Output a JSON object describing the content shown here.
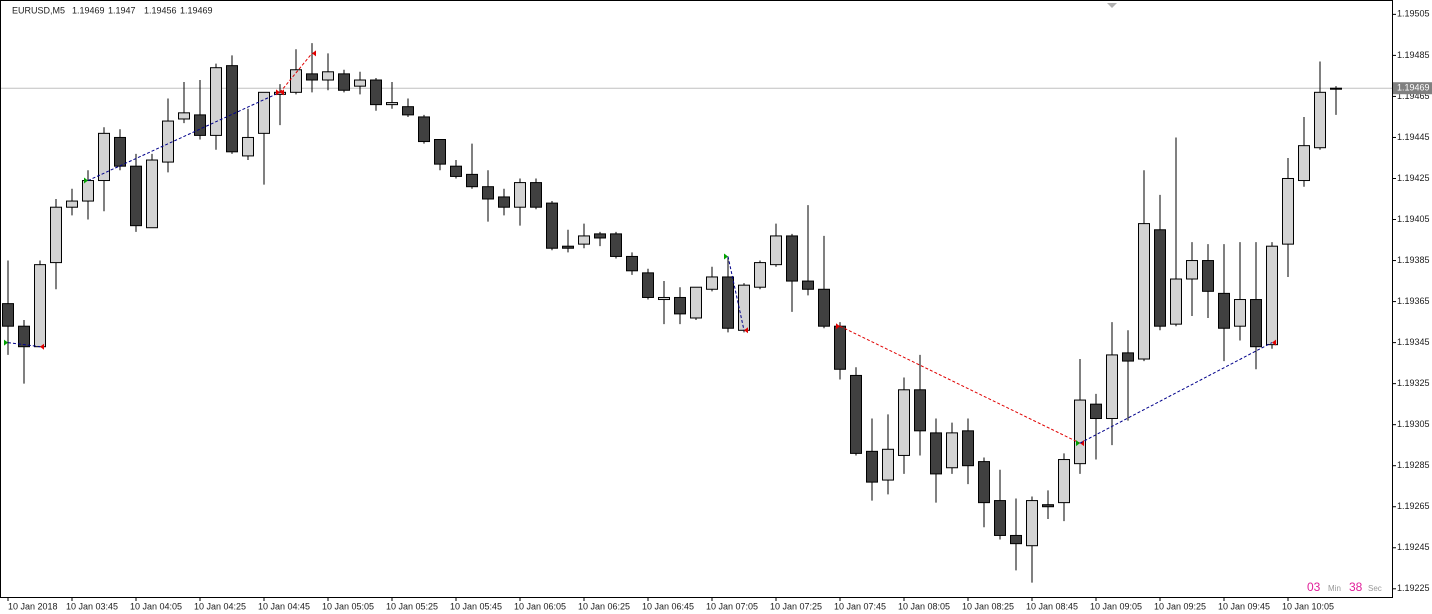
{
  "chart_data": {
    "type": "candlestick",
    "title": "EURUSD,M5",
    "categories": [
      "10 Jan 2018",
      null,
      null,
      null,
      "10 Jan 03:45",
      null,
      null,
      null,
      "10 Jan 04:05",
      null,
      null,
      null,
      "10 Jan 04:25",
      null,
      null,
      null,
      "10 Jan 04:45",
      null,
      null,
      null,
      "10 Jan 05:05",
      null,
      null,
      null,
      "10 Jan 05:25",
      null,
      null,
      null,
      "10 Jan 05:45",
      null,
      null,
      null,
      "10 Jan 06:05",
      null,
      null,
      null,
      "10 Jan 06:25",
      null,
      null,
      null,
      "10 Jan 06:45",
      null,
      null,
      null,
      "10 Jan 07:05",
      null,
      null,
      null,
      "10 Jan 07:25",
      null,
      null,
      null,
      "10 Jan 07:45",
      null,
      null,
      null,
      "10 Jan 08:05",
      null,
      null,
      null,
      "10 Jan 08:25",
      null,
      null,
      null,
      "10 Jan 08:45",
      null,
      null,
      null,
      "10 Jan 09:05",
      null,
      null,
      null,
      "10 Jan 09:25",
      null,
      null,
      null,
      "10 Jan 09:45",
      null,
      null,
      null,
      "10 Jan 10:05",
      null,
      null,
      null
    ],
    "open": [
      1.19364,
      1.19353,
      1.19343,
      1.19384,
      1.19411,
      1.19414,
      1.19424,
      1.19445,
      1.19431,
      1.19401,
      1.19433,
      1.19454,
      1.19456,
      1.19446,
      1.1948,
      1.19436,
      1.19447,
      1.19466,
      1.19467,
      1.19476,
      1.19473,
      1.19476,
      1.1947,
      1.19473,
      1.19461,
      1.1946,
      1.19455,
      1.19444,
      1.19431,
      1.19427,
      1.19421,
      1.19416,
      1.19411,
      1.19423,
      1.19413,
      1.19392,
      1.19393,
      1.19398,
      1.19398,
      1.19387,
      1.19379,
      1.19366,
      1.19367,
      1.19357,
      1.19371,
      1.19377,
      1.19351,
      1.19372,
      1.19383,
      1.19397,
      1.19375,
      1.19371,
      1.19353,
      1.19329,
      1.19292,
      1.19278,
      1.1929,
      1.19322,
      1.19301,
      1.19284,
      1.19302,
      1.19287,
      1.19268,
      1.19251,
      1.19246,
      1.19266,
      1.19267,
      1.19286,
      1.19315,
      1.19308,
      1.1934,
      1.19337,
      1.194,
      1.19354,
      1.19376,
      1.19385,
      1.19369,
      1.19353,
      1.19366,
      1.19344,
      1.19393,
      1.19424,
      1.1944,
      1.19469
    ],
    "high": [
      1.19385,
      1.19356,
      1.19385,
      1.19415,
      1.1942,
      1.19429,
      1.1945,
      1.19449,
      1.19437,
      1.19437,
      1.19464,
      1.19472,
      1.19473,
      1.19481,
      1.19485,
      1.19459,
      1.19467,
      1.19471,
      1.19488,
      1.19491,
      1.19486,
      1.19478,
      1.19477,
      1.19474,
      1.19472,
      1.19464,
      1.19456,
      1.19444,
      1.19434,
      1.19442,
      1.19429,
      1.1942,
      1.19425,
      1.19425,
      1.19414,
      1.194,
      1.19403,
      1.19399,
      1.19399,
      1.19389,
      1.19381,
      1.19375,
      1.19372,
      1.19372,
      1.19382,
      1.19387,
      1.19374,
      1.19385,
      1.19403,
      1.19398,
      1.19412,
      1.19397,
      1.19355,
      1.19333,
      1.19308,
      1.1931,
      1.19328,
      1.19339,
      1.19308,
      1.19306,
      1.19308,
      1.19289,
      1.19283,
      1.19269,
      1.1927,
      1.19273,
      1.19291,
      1.19337,
      1.1932,
      1.19355,
      1.19351,
      1.19429,
      1.19417,
      1.19445,
      1.19394,
      1.19393,
      1.19393,
      1.19394,
      1.19394,
      1.19394,
      1.19435,
      1.19455,
      1.19482,
      1.1947
    ],
    "low": [
      1.19339,
      1.19325,
      1.19343,
      1.19371,
      1.19407,
      1.19405,
      1.19409,
      1.19429,
      1.19399,
      1.19401,
      1.19428,
      1.19452,
      1.19444,
      1.19439,
      1.19437,
      1.19434,
      1.19422,
      1.19451,
      1.19466,
      1.19467,
      1.19468,
      1.19467,
      1.19466,
      1.19458,
      1.19459,
      1.19455,
      1.19442,
      1.19429,
      1.19425,
      1.1942,
      1.19404,
      1.19407,
      1.19402,
      1.1941,
      1.1939,
      1.19389,
      1.19391,
      1.19392,
      1.19386,
      1.19378,
      1.19366,
      1.19354,
      1.19354,
      1.19356,
      1.1937,
      1.1935,
      1.1935,
      1.19371,
      1.19382,
      1.1936,
      1.19368,
      1.19352,
      1.19327,
      1.1929,
      1.19268,
      1.19271,
      1.19281,
      1.1929,
      1.19267,
      1.19281,
      1.19276,
      1.19255,
      1.19249,
      1.19234,
      1.19228,
      1.19259,
      1.19258,
      1.19281,
      1.19288,
      1.19295,
      1.19307,
      1.19336,
      1.19351,
      1.19353,
      1.19358,
      1.19357,
      1.19336,
      1.19346,
      1.19332,
      1.19342,
      1.19377,
      1.19421,
      1.19439,
      1.19456
    ],
    "close": [
      1.19353,
      1.19343,
      1.19383,
      1.19411,
      1.19414,
      1.19424,
      1.19447,
      1.19431,
      1.19402,
      1.19434,
      1.19453,
      1.19457,
      1.19446,
      1.19479,
      1.19438,
      1.19445,
      1.19467,
      1.19467,
      1.19478,
      1.19473,
      1.19477,
      1.19468,
      1.19473,
      1.19461,
      1.19462,
      1.19456,
      1.19443,
      1.19432,
      1.19426,
      1.19421,
      1.19415,
      1.19411,
      1.19423,
      1.19411,
      1.19391,
      1.19391,
      1.19397,
      1.19396,
      1.19387,
      1.1938,
      1.19367,
      1.19367,
      1.19359,
      1.19372,
      1.19377,
      1.19352,
      1.19373,
      1.19384,
      1.19397,
      1.19375,
      1.19371,
      1.19353,
      1.19332,
      1.19291,
      1.19277,
      1.19293,
      1.19322,
      1.19302,
      1.19281,
      1.19301,
      1.19285,
      1.19267,
      1.19251,
      1.19247,
      1.19268,
      1.19265,
      1.19288,
      1.19317,
      1.19308,
      1.19339,
      1.19336,
      1.19403,
      1.19353,
      1.19376,
      1.19385,
      1.1937,
      1.19352,
      1.19366,
      1.19343,
      1.19392,
      1.19425,
      1.19441,
      1.19467,
      1.19469
    ],
    "up_color": "#d3d3d3",
    "down_color": "#404040",
    "ylim": [
      1.19221,
      1.19512
    ],
    "yticks": [
      1.19225,
      1.19245,
      1.19265,
      1.19285,
      1.19305,
      1.19325,
      1.19345,
      1.19365,
      1.19385,
      1.19405,
      1.19425,
      1.19445,
      1.19465,
      1.19485,
      1.19505
    ],
    "current_price": 1.19469,
    "trades": [
      {
        "start_bar": 0,
        "end_bar": 2,
        "open": 1.19345,
        "close": 1.19343,
        "color": "#00008b"
      },
      {
        "start_bar": 5,
        "end_bar": 17,
        "open": 1.19424,
        "close": 1.19467,
        "color": "#00008b"
      },
      {
        "start_bar": 17,
        "end_bar": 19,
        "open": 1.19467,
        "close": 1.19486,
        "color": "#e00000"
      },
      {
        "start_bar": 45,
        "end_bar": 46,
        "open": 1.19387,
        "close": 1.19351,
        "color": "#00008b"
      },
      {
        "start_bar": 52,
        "end_bar": 67,
        "open": 1.19353,
        "close": 1.19296,
        "color": "#e00000"
      },
      {
        "start_bar": 67,
        "end_bar": 79,
        "open": 1.19296,
        "close": 1.19345,
        "color": "#00008b"
      }
    ],
    "timer": {
      "minutes": "03",
      "minutes_label": "Min",
      "seconds": "38",
      "seconds_label": "Sec"
    }
  }
}
